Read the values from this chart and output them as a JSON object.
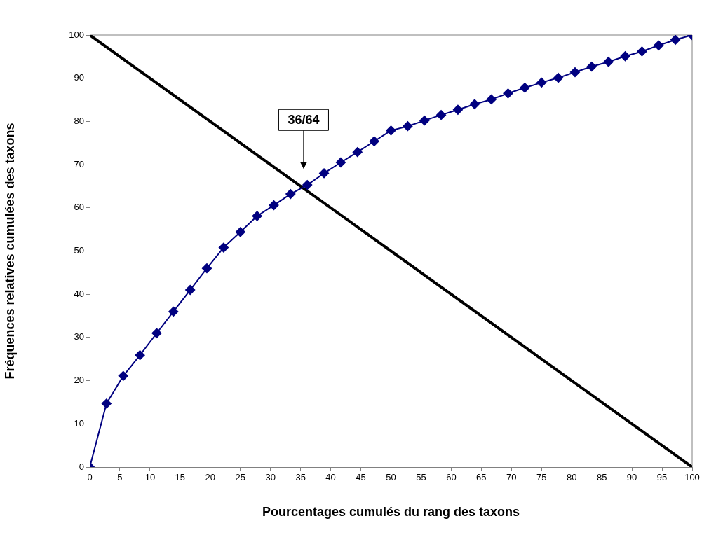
{
  "chart_data": {
    "type": "line",
    "xlabel": "Pourcentages cumulés du rang des taxons",
    "ylabel": "Fréquences relatives cumulées des taxons",
    "xlim": [
      0,
      100
    ],
    "xticks": [
      0,
      5,
      10,
      15,
      20,
      25,
      30,
      35,
      40,
      45,
      50,
      55,
      60,
      65,
      70,
      75,
      80,
      85,
      90,
      95,
      100
    ],
    "ylim": [
      0,
      100
    ],
    "yticks": [
      0,
      10,
      20,
      30,
      40,
      50,
      60,
      70,
      80,
      90,
      100
    ],
    "grid": false,
    "legend": false,
    "series": [
      {
        "color": "#000080",
        "marker": "diamond",
        "x": [
          0,
          2.78,
          5.56,
          8.33,
          11.11,
          13.89,
          16.67,
          19.44,
          22.22,
          25,
          27.78,
          30.56,
          33.33,
          36.11,
          38.89,
          41.67,
          44.44,
          47.22,
          50,
          52.78,
          55.56,
          58.33,
          61.11,
          63.89,
          66.67,
          69.44,
          72.22,
          75,
          77.78,
          80.56,
          83.33,
          86.11,
          88.89,
          91.67,
          94.44,
          97.22,
          100
        ],
        "values": [
          0,
          14.7,
          21.1,
          25.9,
          31.0,
          36.0,
          41.0,
          46.0,
          50.8,
          54.4,
          58.1,
          60.6,
          63.2,
          65.3,
          68.0,
          70.5,
          72.9,
          75.4,
          77.9,
          78.9,
          80.2,
          81.5,
          82.7,
          84.0,
          85.1,
          86.5,
          87.8,
          89.0,
          90.1,
          91.4,
          92.7,
          93.8,
          95.1,
          96.2,
          97.6,
          98.9,
          100
        ]
      },
      {
        "color": "#000000",
        "marker": "none",
        "x": [
          0,
          100
        ],
        "values": [
          100,
          0
        ]
      }
    ],
    "annotations": [
      "36/64"
    ]
  }
}
